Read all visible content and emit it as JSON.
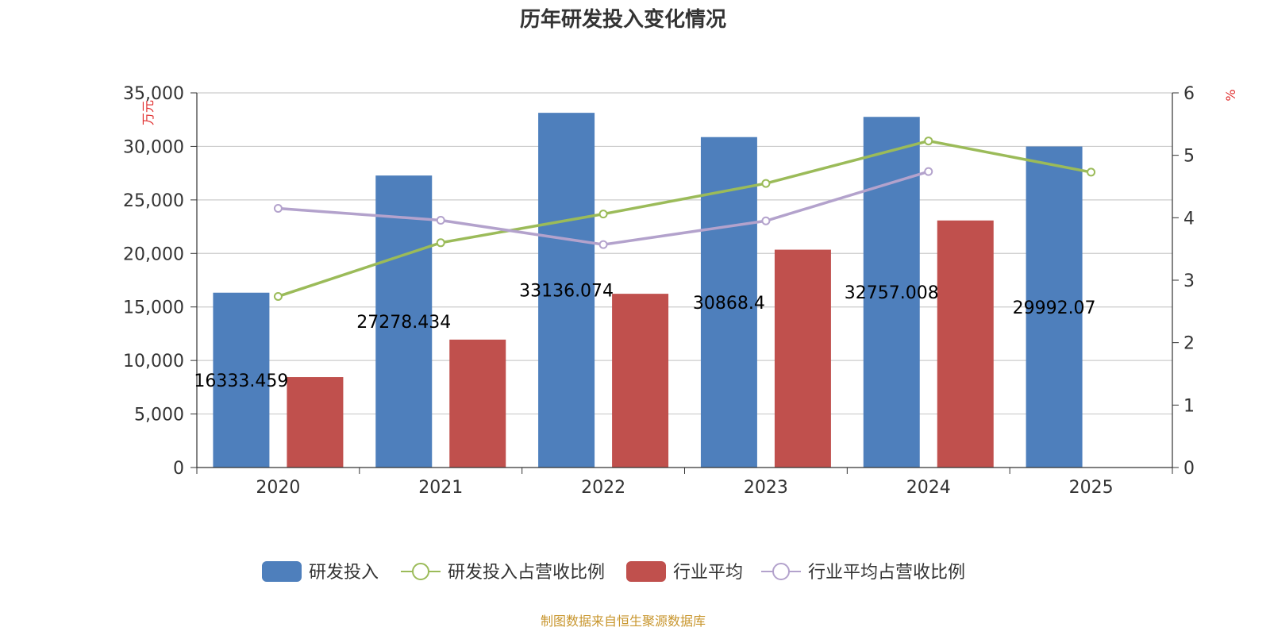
{
  "chart_data": {
    "type": "bar",
    "title": "历年研发投入变化情况",
    "categories": [
      "2020",
      "2021",
      "2022",
      "2023",
      "2024",
      "2025"
    ],
    "left_axis": {
      "unit_label": "万元",
      "range": [
        0,
        35000
      ],
      "ticks": [
        0,
        5000,
        10000,
        15000,
        20000,
        25000,
        30000,
        35000
      ],
      "tick_labels": [
        "0",
        "5,000",
        "10,000",
        "15,000",
        "20,000",
        "25,000",
        "30,000",
        "35,000"
      ]
    },
    "right_axis": {
      "unit_label": "%",
      "range": [
        0,
        6
      ],
      "ticks": [
        0,
        1,
        2,
        3,
        4,
        5,
        6
      ],
      "tick_labels": [
        "0",
        "1",
        "2",
        "3",
        "4",
        "5",
        "6"
      ]
    },
    "series": [
      {
        "name": "研发投入",
        "type": "bar",
        "axis": "left",
        "color": "#4e7fbc",
        "values": [
          16333.459,
          27278.434,
          33136.074,
          30868.4,
          32757.008,
          29992.07
        ],
        "value_labels": [
          "16333.459",
          "27278.434",
          "33136.074",
          "30868.4",
          "32757.008",
          "29992.07"
        ]
      },
      {
        "name": "研发投入占营收比例",
        "type": "line",
        "axis": "right",
        "color": "#9bbb59",
        "values": [
          2.74,
          3.6,
          4.06,
          4.55,
          5.23,
          4.73
        ]
      },
      {
        "name": "行业平均",
        "type": "bar",
        "axis": "left",
        "color": "#c0504d",
        "values": [
          8450,
          11950,
          16230,
          20350,
          23080,
          null
        ]
      },
      {
        "name": "行业平均占营收比例",
        "type": "line",
        "axis": "right",
        "color": "#b3a2cc",
        "values": [
          4.15,
          3.96,
          3.57,
          3.95,
          4.74,
          null
        ]
      }
    ],
    "legend_position": "bottom"
  },
  "source": "制图数据来自恒生聚源数据库"
}
